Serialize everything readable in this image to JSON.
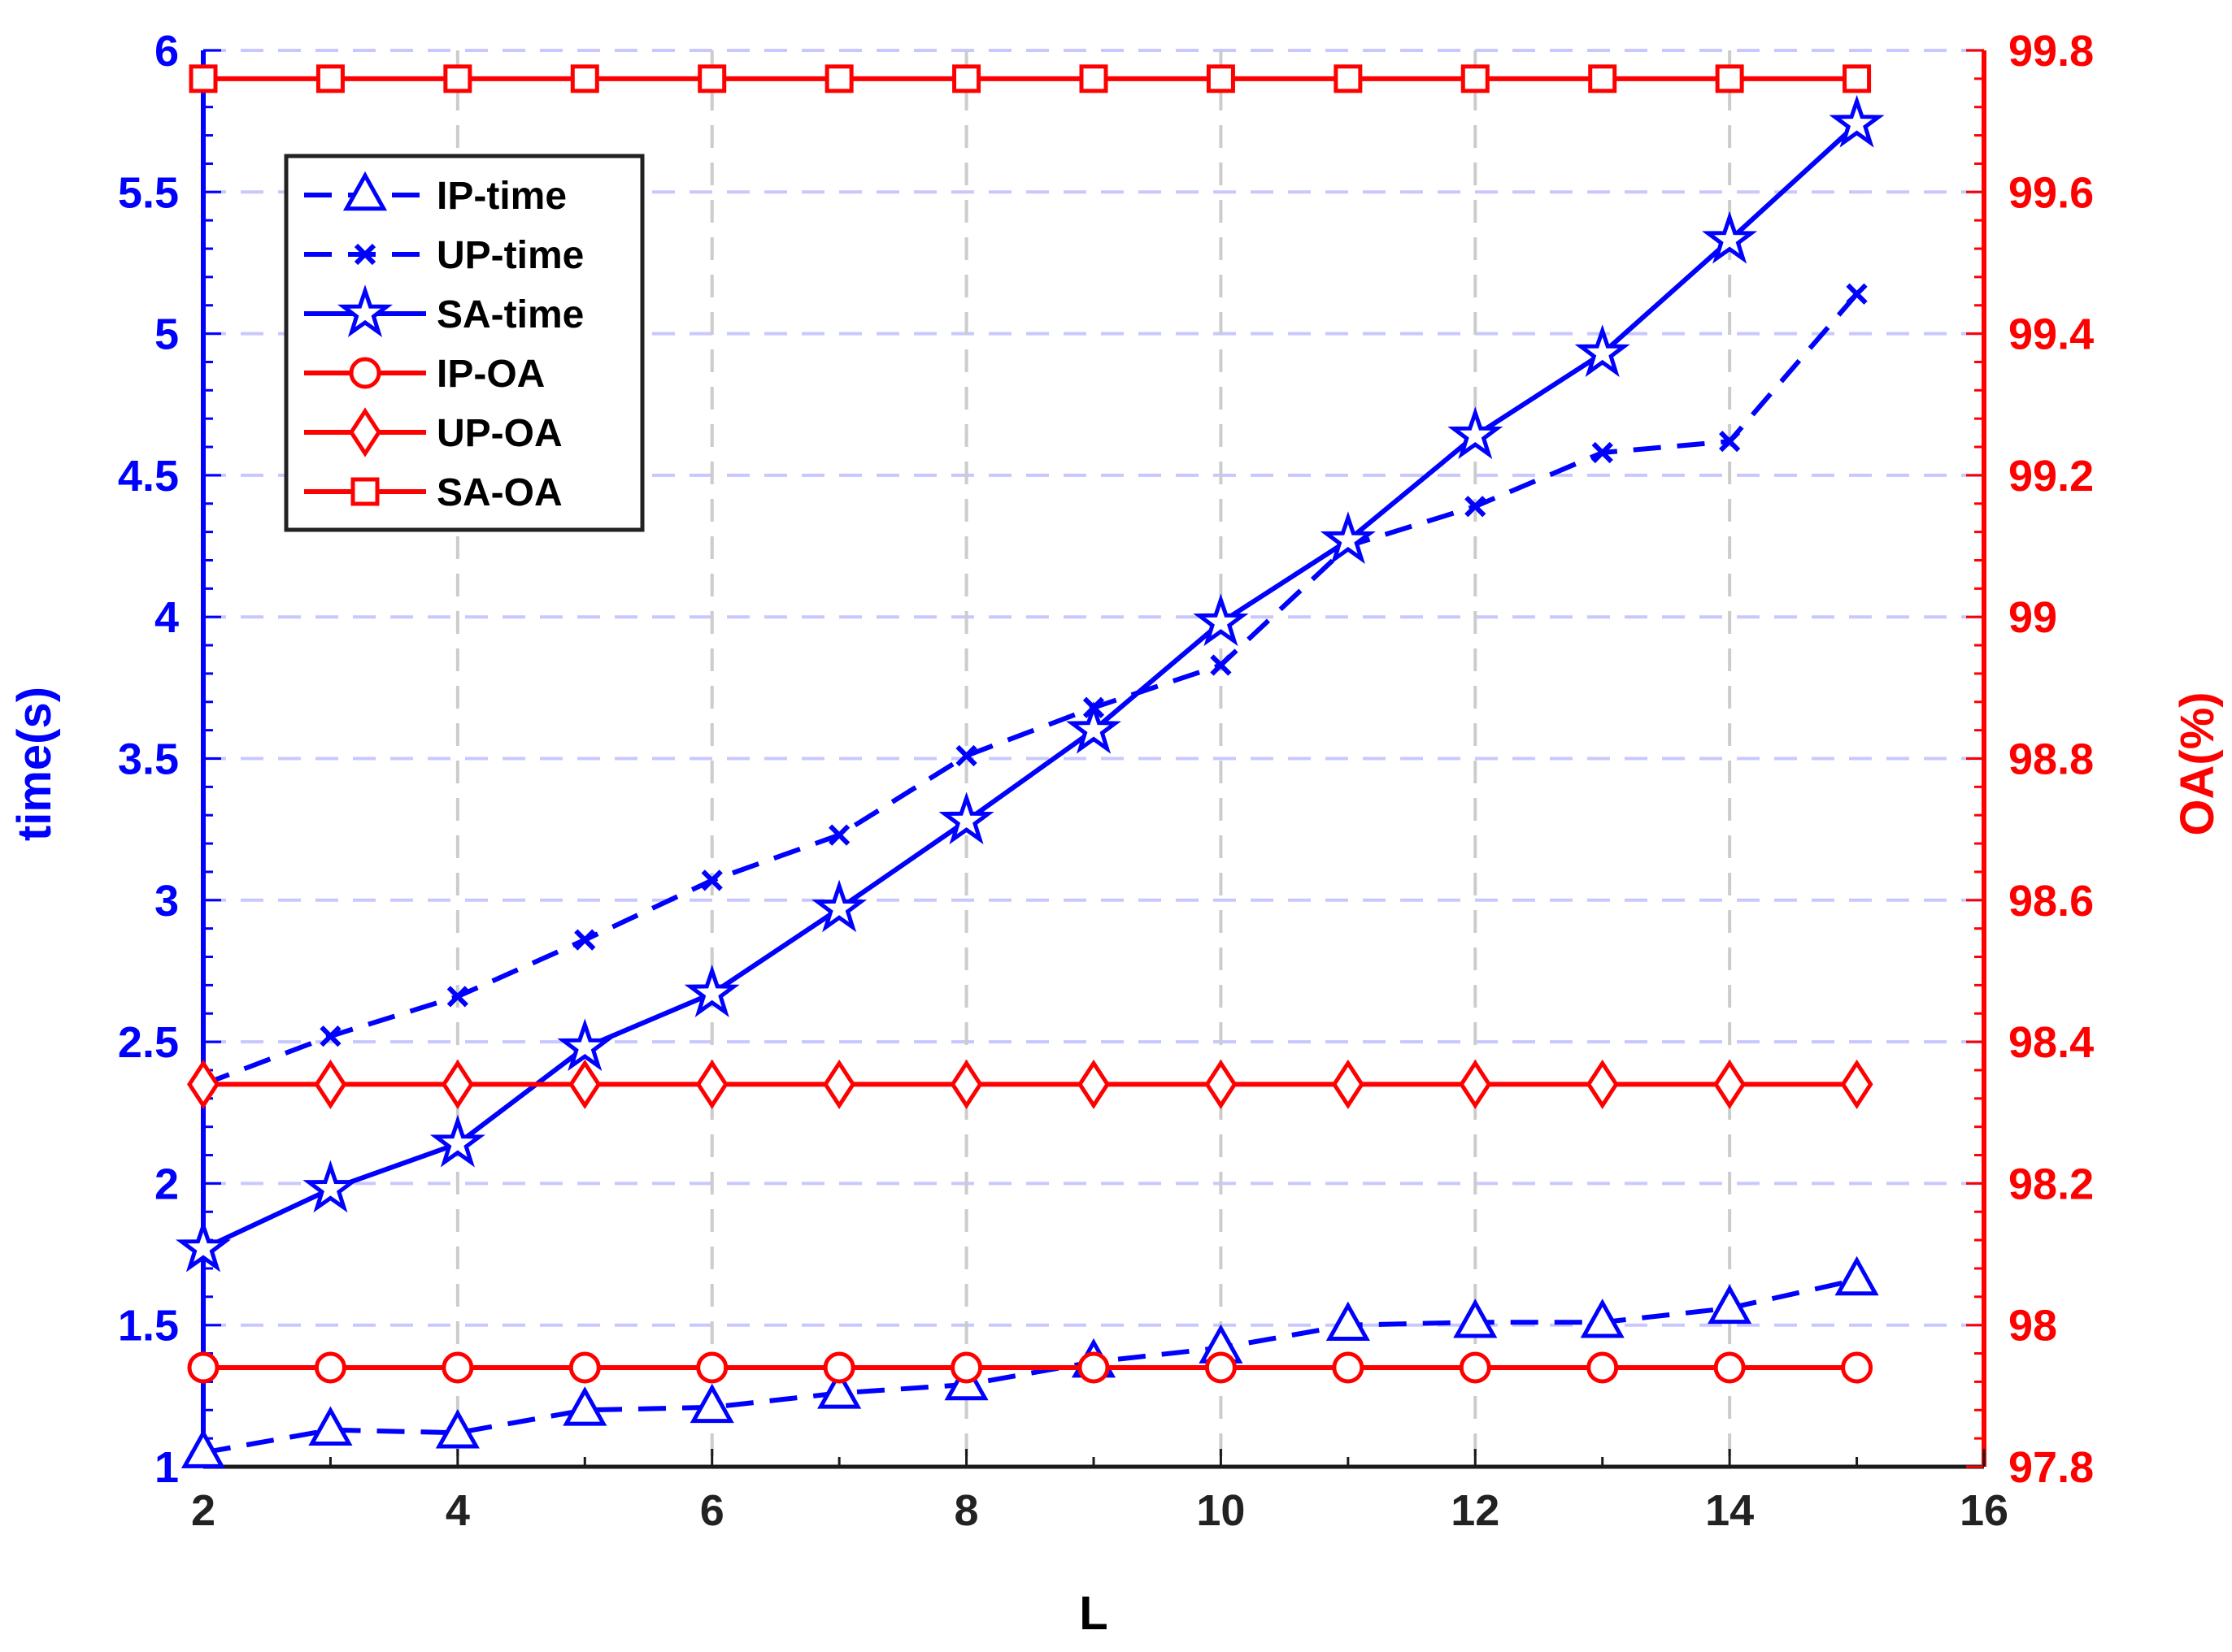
{
  "chart_data": {
    "type": "line",
    "xlabel": "L",
    "ylabel_left": "time(s)",
    "ylabel_right": "OA(%)",
    "x": [
      2,
      3,
      4,
      5,
      6,
      7,
      8,
      9,
      10,
      11,
      12,
      13,
      14,
      15
    ],
    "xlim": [
      2,
      16
    ],
    "xticks": [
      2,
      4,
      6,
      8,
      10,
      12,
      14,
      16
    ],
    "ylim_left": [
      1,
      6
    ],
    "yticks_left": [
      1,
      1.5,
      2,
      2.5,
      3,
      3.5,
      4,
      4.5,
      5,
      5.5,
      6
    ],
    "ylim_right": [
      97.8,
      99.8
    ],
    "yticks_right": [
      97.8,
      98,
      98.2,
      98.4,
      98.6,
      98.8,
      99,
      99.2,
      99.4,
      99.6,
      99.8
    ],
    "grid": true,
    "legend_position": "top-left",
    "colors": {
      "time": "#0000ff",
      "oa": "#ff0000",
      "grid": "#c8c8ff",
      "vgrid": "#cccccc"
    },
    "series": [
      {
        "name": "IP-time",
        "axis": "left",
        "marker": "triangle",
        "line": "dashed",
        "color": "#0000ff",
        "values": [
          1.05,
          1.13,
          1.12,
          1.2,
          1.21,
          1.26,
          1.29,
          1.37,
          1.42,
          1.5,
          1.51,
          1.51,
          1.56,
          1.66
        ]
      },
      {
        "name": "UP-time",
        "axis": "left",
        "marker": "x",
        "line": "dashed",
        "color": "#0000ff",
        "values": [
          2.35,
          2.52,
          2.66,
          2.86,
          3.07,
          3.23,
          3.51,
          3.68,
          3.83,
          4.25,
          4.39,
          4.58,
          4.62,
          5.14
        ]
      },
      {
        "name": "SA-time",
        "axis": "left",
        "marker": "star",
        "line": "solid",
        "color": "#0000ff",
        "values": [
          1.77,
          1.98,
          2.14,
          2.48,
          2.67,
          2.97,
          3.28,
          3.6,
          3.98,
          4.27,
          4.64,
          4.93,
          5.33,
          5.74
        ]
      },
      {
        "name": "IP-OA",
        "axis": "right",
        "marker": "circle",
        "line": "solid",
        "color": "#ff0000",
        "values": [
          97.94,
          97.94,
          97.94,
          97.94,
          97.94,
          97.94,
          97.94,
          97.94,
          97.94,
          97.94,
          97.94,
          97.94,
          97.94,
          97.94
        ]
      },
      {
        "name": "UP-OA",
        "axis": "right",
        "marker": "diamond",
        "line": "solid",
        "color": "#ff0000",
        "values": [
          98.34,
          98.34,
          98.34,
          98.34,
          98.34,
          98.34,
          98.34,
          98.34,
          98.34,
          98.34,
          98.34,
          98.34,
          98.34,
          98.34
        ]
      },
      {
        "name": "SA-OA",
        "axis": "right",
        "marker": "square",
        "line": "solid",
        "color": "#ff0000",
        "values": [
          99.76,
          99.76,
          99.76,
          99.76,
          99.76,
          99.76,
          99.76,
          99.76,
          99.76,
          99.76,
          99.76,
          99.76,
          99.76,
          99.76
        ]
      }
    ]
  }
}
